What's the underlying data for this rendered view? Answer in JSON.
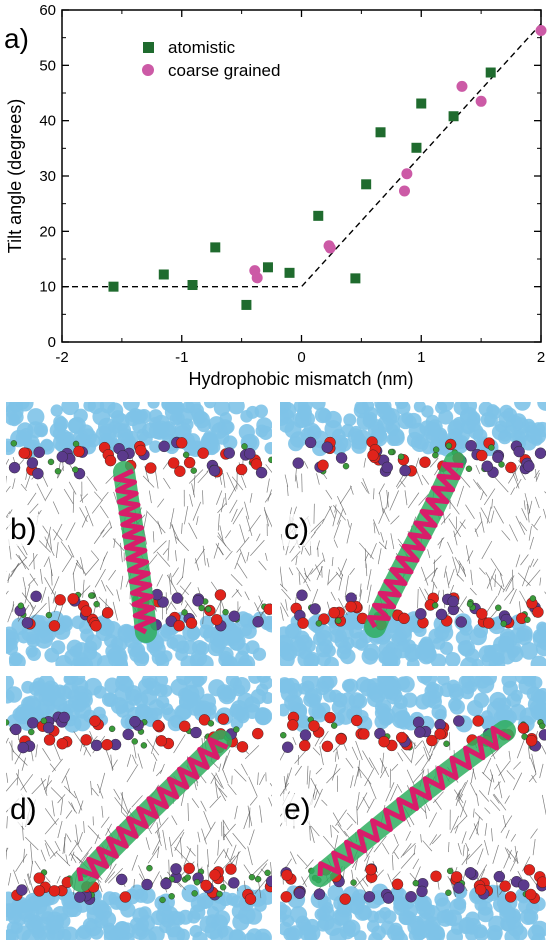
{
  "figure": {
    "panel_a_label": "a)",
    "snapshot_labels": [
      "b)",
      "c)",
      "d)",
      "e)"
    ],
    "colors": {
      "atomistic": "#1f6b2e",
      "coarse_grained": "#cc5aa6",
      "fit_line": "#000000",
      "water": "#7ec3e8",
      "lipid_tails": "#555555",
      "head_red": "#e0231b",
      "head_purple": "#5b3a8c",
      "head_green": "#3a9a3a",
      "helix_magenta": "#d81d6a",
      "helix_green": "#2fae5f"
    }
  },
  "chart_data": {
    "type": "scatter",
    "xlabel": "Hydrophobic mismatch (nm)",
    "ylabel": "Tilt angle (degrees)",
    "xlim": [
      -2,
      2
    ],
    "ylim": [
      0,
      60
    ],
    "xticks": [
      -2,
      -1,
      0,
      1,
      2
    ],
    "yticks": [
      0,
      10,
      20,
      30,
      40,
      50,
      60
    ],
    "legend_placement": "top-left",
    "series": [
      {
        "name": "atomistic",
        "marker": "square",
        "color": "#1f6b2e",
        "points": [
          [
            -1.57,
            10.0
          ],
          [
            -1.15,
            12.2
          ],
          [
            -0.91,
            10.3
          ],
          [
            -0.72,
            17.1
          ],
          [
            -0.46,
            6.7
          ],
          [
            -0.28,
            13.5
          ],
          [
            -0.1,
            12.5
          ],
          [
            0.14,
            22.8
          ],
          [
            0.45,
            11.5
          ],
          [
            0.54,
            28.5
          ],
          [
            0.66,
            37.9
          ],
          [
            0.96,
            35.1
          ],
          [
            1.0,
            43.1
          ],
          [
            1.27,
            40.8
          ],
          [
            1.58,
            48.7
          ]
        ]
      },
      {
        "name": "coarse grained",
        "marker": "circle",
        "color": "#cc5aa6",
        "points": [
          [
            -0.39,
            12.9
          ],
          [
            -0.37,
            11.6
          ],
          [
            0.23,
            17.4
          ],
          [
            0.24,
            17.0
          ],
          [
            0.86,
            27.3
          ],
          [
            0.88,
            30.4
          ],
          [
            1.34,
            46.2
          ],
          [
            1.5,
            43.5
          ],
          [
            2.0,
            56.3
          ]
        ]
      }
    ],
    "fit_line": {
      "style": "dashed",
      "points": [
        [
          -2,
          10
        ],
        [
          0,
          10
        ],
        [
          2,
          57.5
        ]
      ]
    }
  }
}
